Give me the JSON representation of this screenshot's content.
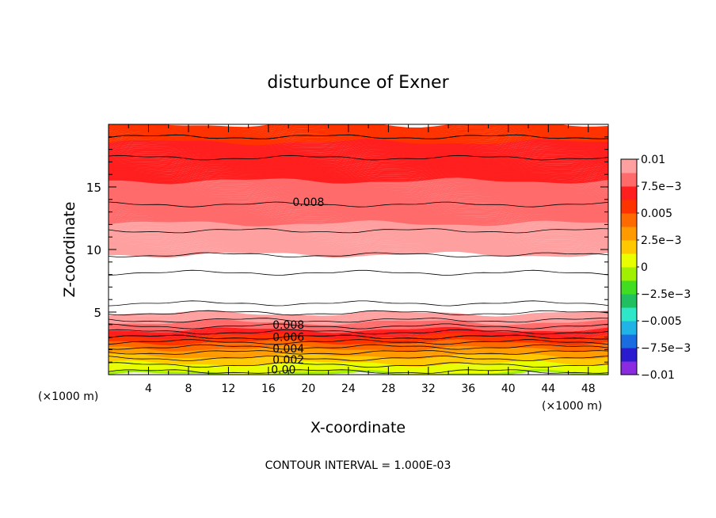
{
  "chart_data": {
    "type": "heatmap",
    "title": "disturbunce of Exner",
    "xlabel": "X-coordinate",
    "ylabel": "Z-coordinate",
    "x_unit_left": "(×1000 m)",
    "x_unit_right": "(×1000 m)",
    "xlim": [
      0,
      50
    ],
    "ylim": [
      0,
      20
    ],
    "x_ticks": [
      4,
      8,
      12,
      16,
      20,
      24,
      28,
      32,
      36,
      40,
      44,
      48
    ],
    "y_ticks": [
      5,
      10,
      15
    ],
    "contour_interval_text": "CONTOUR INTERVAL = 1.000E-03",
    "contour_labels": [
      {
        "text": "0.008",
        "x": 20,
        "z": 13.8
      },
      {
        "text": "0.008",
        "x": 18,
        "z": 4.0
      },
      {
        "text": "0.006",
        "x": 18,
        "z": 3.0
      },
      {
        "text": "0.004",
        "x": 18,
        "z": 2.1
      },
      {
        "text": "0.002",
        "x": 18,
        "z": 1.2
      },
      {
        "text": "0.00",
        "x": 17.5,
        "z": 0.4
      }
    ],
    "colorbar": {
      "levels": [
        -0.01,
        -0.0075,
        -0.005,
        -0.0025,
        0,
        0.0025,
        0.005,
        0.0075,
        0.01
      ],
      "tick_labels": [
        "0.01",
        "7.5e−3",
        "0.005",
        "2.5e−3",
        "0",
        "−2.5e−3",
        "−0.005",
        "−7.5e−3",
        "−0.01"
      ],
      "colors": [
        "#8a2be2",
        "#2b1bcf",
        "#1a6de0",
        "#1fb3e6",
        "#2ee6c8",
        "#20c060",
        "#40dd20",
        "#a0f000",
        "#e8ff00",
        "#ffc800",
        "#ff9a00",
        "#ff6a00",
        "#ff3300",
        "#ff1f1f",
        "#ff6a6a",
        "#ffa0a0"
      ]
    },
    "field_profile": {
      "z": [
        0,
        0.5,
        1,
        1.5,
        2,
        2.5,
        3,
        3.5,
        4,
        4.5,
        5,
        5.5,
        6,
        7,
        8,
        9,
        10,
        11,
        12,
        13,
        14,
        15,
        16,
        17,
        18,
        19,
        20
      ],
      "value": [
        -0.0005,
        0.0005,
        0.0014,
        0.0024,
        0.0035,
        0.0047,
        0.006,
        0.0072,
        0.0083,
        0.0093,
        0.0101,
        0.0108,
        0.0113,
        0.0115,
        0.0111,
        0.0104,
        0.0097,
        0.0092,
        0.0088,
        0.0083,
        0.0078,
        0.0076,
        0.0074,
        0.0072,
        0.0066,
        0.006,
        0.0055
      ]
    },
    "grid": false,
    "legend_position": "right"
  }
}
